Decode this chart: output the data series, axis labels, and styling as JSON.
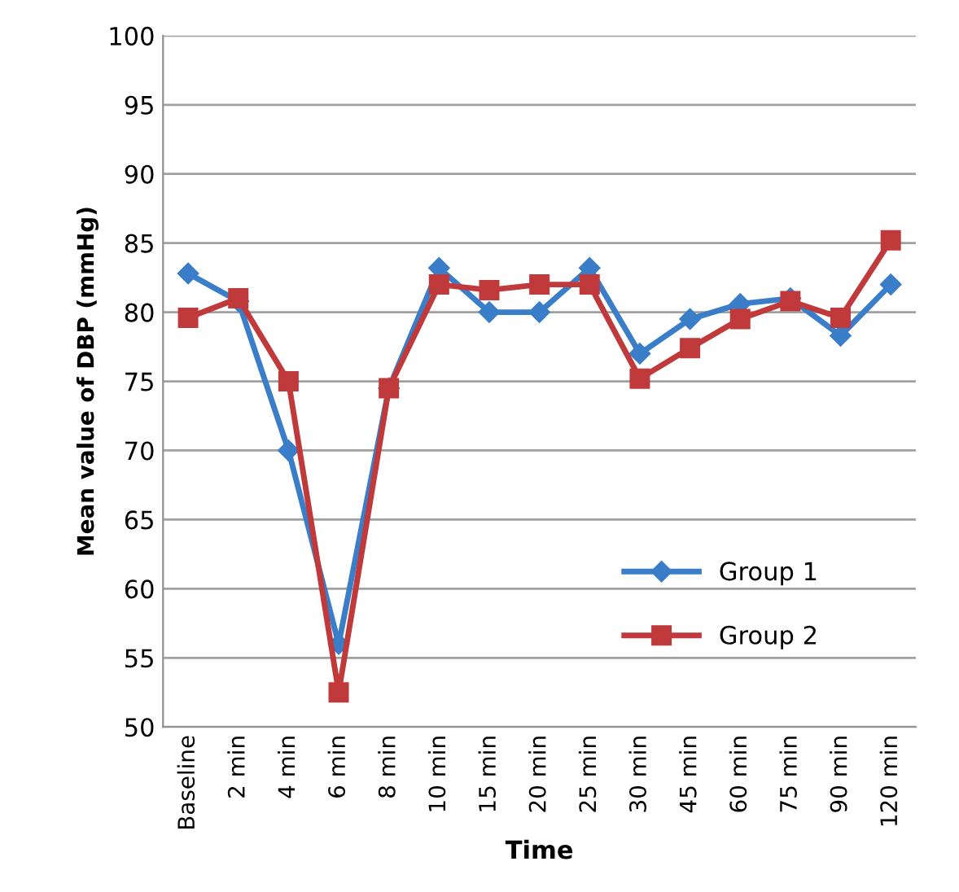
{
  "chart_data": {
    "type": "line",
    "xlabel": "Time",
    "ylabel": "Mean value of DBP (mmHg)",
    "categories": [
      "Baseline",
      "2 min",
      "4 min",
      "6 min",
      "8 min",
      "10 min",
      "15 min",
      "20 min",
      "25 min",
      "30 min",
      "45 min",
      "60 min",
      "75 min",
      "90 min",
      "120 min"
    ],
    "series": [
      {
        "name": "Group 1",
        "color": "#3a7dc9",
        "marker": "diamond",
        "values": [
          82.8,
          80.8,
          70,
          56,
          74.5,
          83.2,
          80,
          80,
          83.2,
          77,
          79.5,
          80.6,
          81,
          78.3,
          82
        ]
      },
      {
        "name": "Group 2",
        "color": "#c0393b",
        "marker": "square",
        "values": [
          79.6,
          81,
          75,
          52.5,
          74.5,
          82,
          81.6,
          82,
          82,
          75.2,
          77.4,
          79.5,
          80.8,
          79.6,
          85.2
        ]
      }
    ],
    "ylim": [
      50,
      100
    ],
    "yticks": [
      50,
      55,
      60,
      65,
      70,
      75,
      80,
      85,
      90,
      95,
      100
    ],
    "grid": "y",
    "legend": "bottom right",
    "line_style": "solid"
  }
}
